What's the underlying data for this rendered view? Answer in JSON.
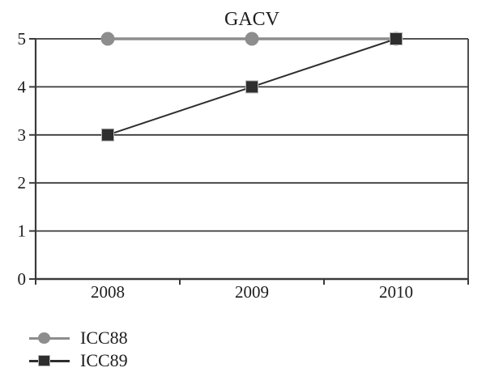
{
  "chart_data": {
    "type": "line",
    "title": "GACV",
    "categories": [
      "2008",
      "2009",
      "2010"
    ],
    "series": [
      {
        "name": "ICC88",
        "values": [
          5,
          5,
          5
        ],
        "color": "#8d8d8d",
        "marker": "circle"
      },
      {
        "name": "ICC89",
        "values": [
          3,
          4,
          5
        ],
        "color": "#2e2e2e",
        "marker": "square"
      }
    ],
    "ylim": [
      0,
      5
    ],
    "yticks": [
      0,
      1,
      2,
      3,
      4,
      5
    ],
    "xlabel": "",
    "ylabel": "",
    "grid": true,
    "legend_position": "bottom-left",
    "axis_color": "#3a3a3a",
    "text_color": "#1d1d1d",
    "background": "#ffffff"
  }
}
